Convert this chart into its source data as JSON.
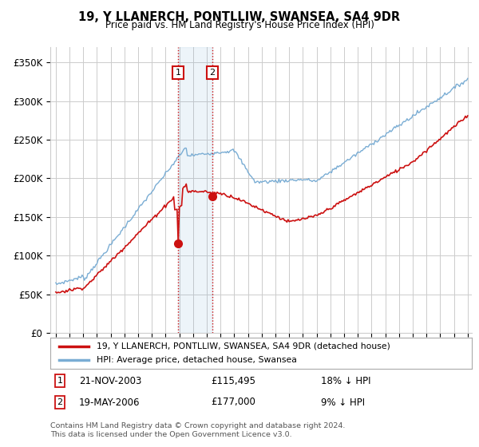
{
  "title": "19, Y LLANERCH, PONTLLIW, SWANSEA, SA4 9DR",
  "subtitle": "Price paid vs. HM Land Registry's House Price Index (HPI)",
  "ylim": [
    0,
    370000
  ],
  "yticks": [
    0,
    50000,
    100000,
    150000,
    200000,
    250000,
    300000,
    350000
  ],
  "ytick_labels": [
    "£0",
    "£50K",
    "£100K",
    "£150K",
    "£200K",
    "£250K",
    "£300K",
    "£350K"
  ],
  "hpi_color": "#7aadd4",
  "price_color": "#cc1111",
  "transaction1_date_num": 2003.896,
  "transaction2_date_num": 2006.381,
  "transaction1_price": 115495,
  "transaction2_price": 177000,
  "transaction1_label": "21-NOV-2003",
  "transaction1_amount": "£115,495",
  "transaction1_hpi": "18% ↓ HPI",
  "transaction2_label": "19-MAY-2006",
  "transaction2_amount": "£177,000",
  "transaction2_hpi": "9% ↓ HPI",
  "legend_label1": "19, Y LLANERCH, PONTLLIW, SWANSEA, SA4 9DR (detached house)",
  "legend_label2": "HPI: Average price, detached house, Swansea",
  "footer": "Contains HM Land Registry data © Crown copyright and database right 2024.\nThis data is licensed under the Open Government Licence v3.0.",
  "background_color": "#ffffff",
  "grid_color": "#cccccc",
  "xstart": 1995,
  "xend": 2025
}
